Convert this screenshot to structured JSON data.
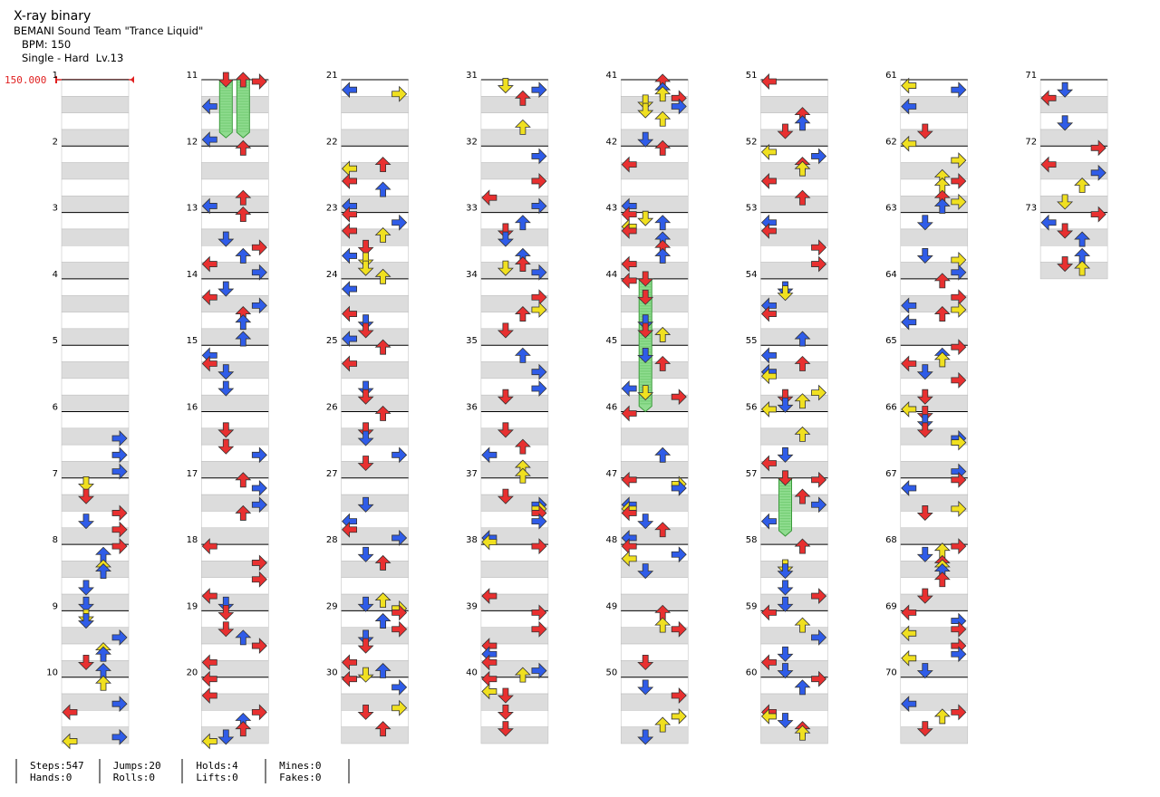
{
  "header": {
    "title": "X-ray binary",
    "artist": "BEMANI Sound Team \"Trance Liquid\"",
    "bpm": "BPM: 150",
    "difficulty": "Single - Hard  Lv.13"
  },
  "bpm_marker": "150.000",
  "measures": [
    1,
    2,
    3,
    4,
    5,
    6,
    7,
    8,
    9,
    10,
    11,
    12,
    13,
    14,
    15,
    16,
    17,
    18,
    19,
    20,
    21,
    22,
    23,
    24,
    25,
    26,
    27,
    28,
    29,
    30,
    31,
    32,
    33,
    34,
    35,
    36,
    37,
    38,
    39,
    40,
    41,
    42,
    43,
    44,
    45,
    46,
    47,
    48,
    49,
    50,
    51,
    52,
    53,
    54,
    55,
    56,
    57,
    58,
    59,
    60,
    61,
    62,
    63,
    64,
    65,
    66,
    67,
    68,
    69,
    70,
    71,
    72,
    73
  ],
  "stats": [
    [
      "Steps:547",
      "Hands:0"
    ],
    [
      "Jumps:20",
      "Rolls:0"
    ],
    [
      "Holds:4",
      "Lifts:0"
    ],
    [
      "Mines:0",
      "Fakes:0"
    ]
  ]
}
